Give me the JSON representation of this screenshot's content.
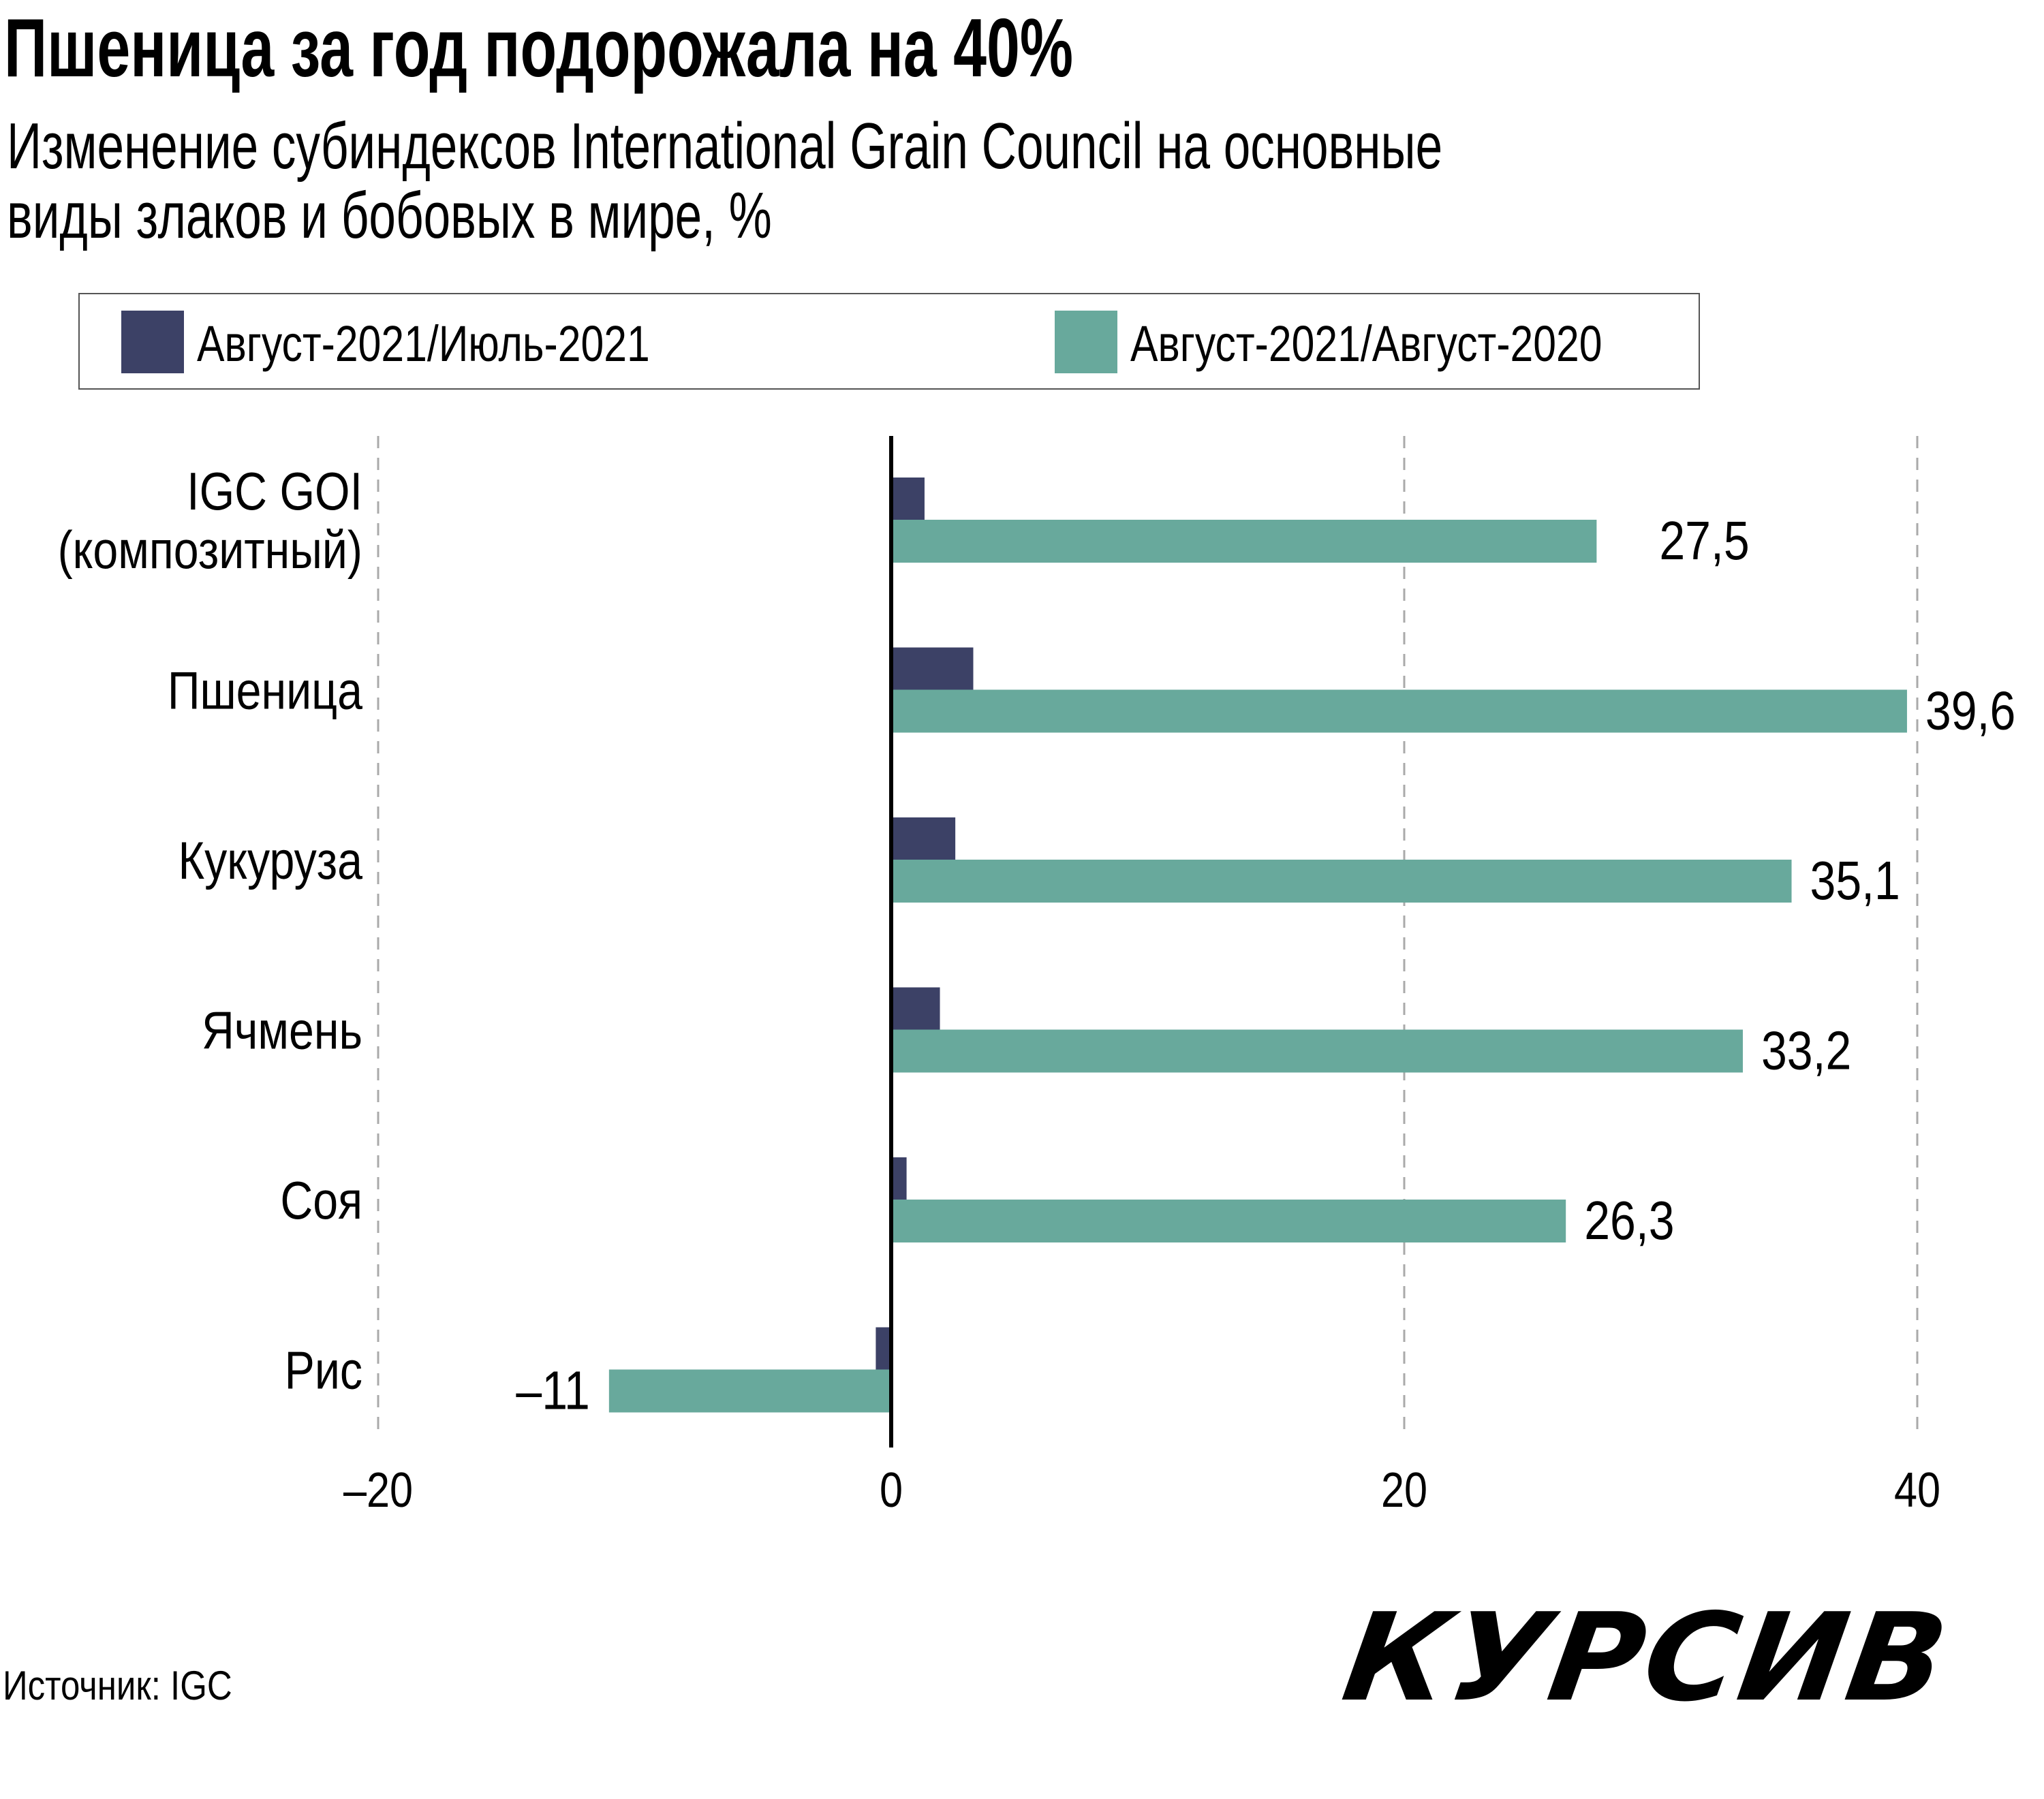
{
  "title": "Пшеница за год подорожала на 40%",
  "subtitle_lines": [
    "Изменение субиндексов International Grain Council на основные",
    "виды злаков и бобовых в мире, %"
  ],
  "source": "Источник: IGC",
  "logo": "КУРСИВ",
  "colors": {
    "monthly": "#3c4166",
    "yearly": "#68a99c"
  },
  "chart_data": {
    "type": "bar",
    "orientation": "horizontal",
    "title": "Пшеница за год подорожала на 40%",
    "categories": [
      "IGC GOI (композитный)",
      "Пшеница",
      "Кукуруза",
      "Ячмень",
      "Соя",
      "Рис"
    ],
    "category_lines": [
      [
        "IGC GOI",
        "(композитный)"
      ],
      [
        "Пшеница"
      ],
      [
        "Кукуруза"
      ],
      [
        "Ячмень"
      ],
      [
        "Соя"
      ],
      [
        "Рис"
      ]
    ],
    "series": [
      {
        "name": "Август-2021/Июль-2021",
        "color": "#3c4166",
        "values": [
          1.3,
          3.2,
          2.5,
          1.9,
          0.6,
          -0.6
        ]
      },
      {
        "name": "Август-2021/Август-2020",
        "color": "#68a99c",
        "values": [
          27.5,
          39.6,
          35.1,
          33.2,
          26.3,
          -11
        ]
      }
    ],
    "data_labels": [
      "27,5",
      "39,6",
      "35,1",
      "33,2",
      "26,3",
      "–11"
    ],
    "xlim": [
      -20,
      40
    ],
    "xticks": [
      -20,
      0,
      20,
      40
    ],
    "xtick_labels": [
      "–20",
      "0",
      "20",
      "40"
    ],
    "grid": "vertical dashed",
    "legend": "top"
  }
}
